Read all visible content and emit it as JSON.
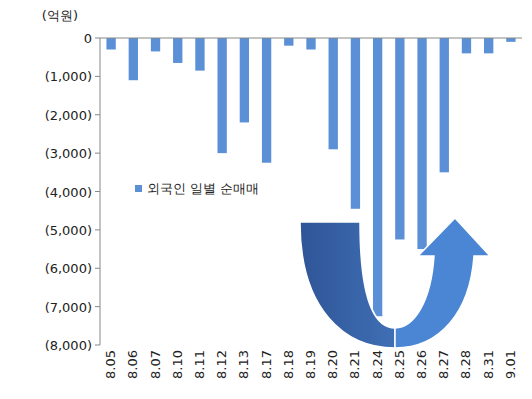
{
  "chart_data": {
    "type": "bar",
    "y_label": "(억원)",
    "categories": [
      "8.05",
      "8.06",
      "8.07",
      "8.10",
      "8.11",
      "8.12",
      "8.13",
      "8.17",
      "8.18",
      "8.19",
      "8.20",
      "8.21",
      "8.24",
      "8.25",
      "8.26",
      "8.27",
      "8.28",
      "8.31",
      "9.01"
    ],
    "series": [
      {
        "name": "외국인 일별 순매매",
        "color": "#5b8fd6",
        "values": [
          -300,
          -1100,
          -350,
          -650,
          -850,
          -3000,
          -2200,
          -3250,
          -200,
          -300,
          -2900,
          -4450,
          -7250,
          -5250,
          -5500,
          -3500,
          -400,
          -400,
          -100
        ]
      }
    ],
    "ylim": [
      -8000,
      0
    ],
    "yticks": [
      0,
      {
        "value": -1000,
        "label": "(1,000)"
      },
      {
        "value": -2000,
        "label": "(2,000)"
      },
      {
        "value": -3000,
        "label": "(3,000)"
      },
      {
        "value": -4000,
        "label": "(4,000)"
      },
      {
        "value": -5000,
        "label": "(5,000)"
      },
      {
        "value": -6000,
        "label": "(6,000)"
      },
      {
        "value": -7000,
        "label": "(7,000)"
      },
      {
        "value": -8000,
        "label": "(8,000)"
      }
    ],
    "grid": false,
    "legend": "left"
  }
}
